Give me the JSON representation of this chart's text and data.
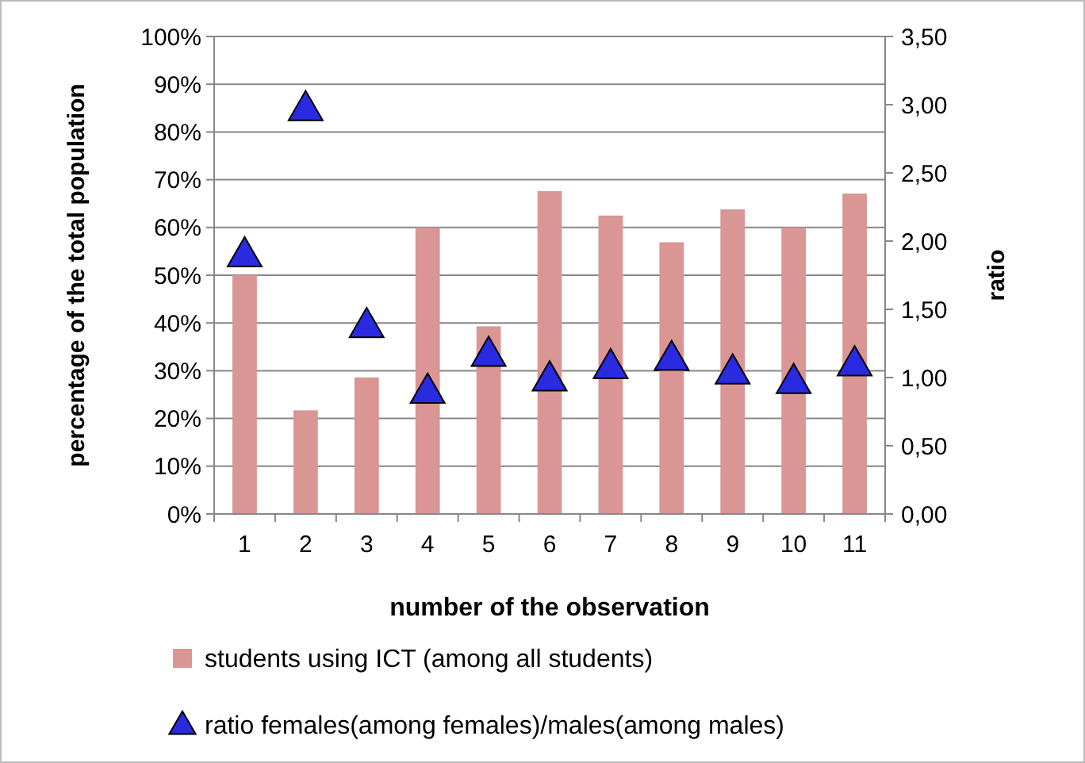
{
  "chart_data": {
    "type": "bar",
    "xlabel": "number of the observation",
    "ylabel": "percentage of the total population",
    "y2label": "ratio",
    "categories": [
      "1",
      "2",
      "3",
      "4",
      "5",
      "6",
      "7",
      "8",
      "9",
      "10",
      "11"
    ],
    "series": [
      {
        "name": "students using ICT (among all students)",
        "color": "#d99694",
        "values": [
          50,
          21.7,
          28.6,
          60,
          39.3,
          67.6,
          62.5,
          56.9,
          63.8,
          60,
          67.1
        ]
      },
      {
        "name": "ratio females(among females)/males(among males)",
        "type": "scatter",
        "axis": "y2",
        "marker": "triangle",
        "color": "#2a2ae0",
        "values": [
          1.91,
          2.98,
          1.39,
          0.91,
          1.18,
          1.0,
          1.09,
          1.15,
          1.05,
          0.98,
          1.11
        ]
      }
    ],
    "ylim": [
      0,
      100
    ],
    "yticks": [
      {
        "value": 0,
        "label": "0%"
      },
      {
        "value": 10,
        "label": "10%"
      },
      {
        "value": 20,
        "label": "20%"
      },
      {
        "value": 30,
        "label": "30%"
      },
      {
        "value": 40,
        "label": "40%"
      },
      {
        "value": 50,
        "label": "50%"
      },
      {
        "value": 60,
        "label": "60%"
      },
      {
        "value": 70,
        "label": "70%"
      },
      {
        "value": 80,
        "label": "80%"
      },
      {
        "value": 90,
        "label": "90%"
      },
      {
        "value": 100,
        "label": "100%"
      }
    ],
    "y2lim": [
      0,
      3.5
    ],
    "y2ticks": [
      {
        "value": 0,
        "label": "0,00"
      },
      {
        "value": 0.5,
        "label": "0,50"
      },
      {
        "value": 1,
        "label": "1,00"
      },
      {
        "value": 1.5,
        "label": "1,50"
      },
      {
        "value": 2,
        "label": "2,00"
      },
      {
        "value": 2.5,
        "label": "2,50"
      },
      {
        "value": 3,
        "label": "3,00"
      },
      {
        "value": 3.5,
        "label": "3,50"
      }
    ],
    "grid": "y",
    "legend": "bottom"
  }
}
